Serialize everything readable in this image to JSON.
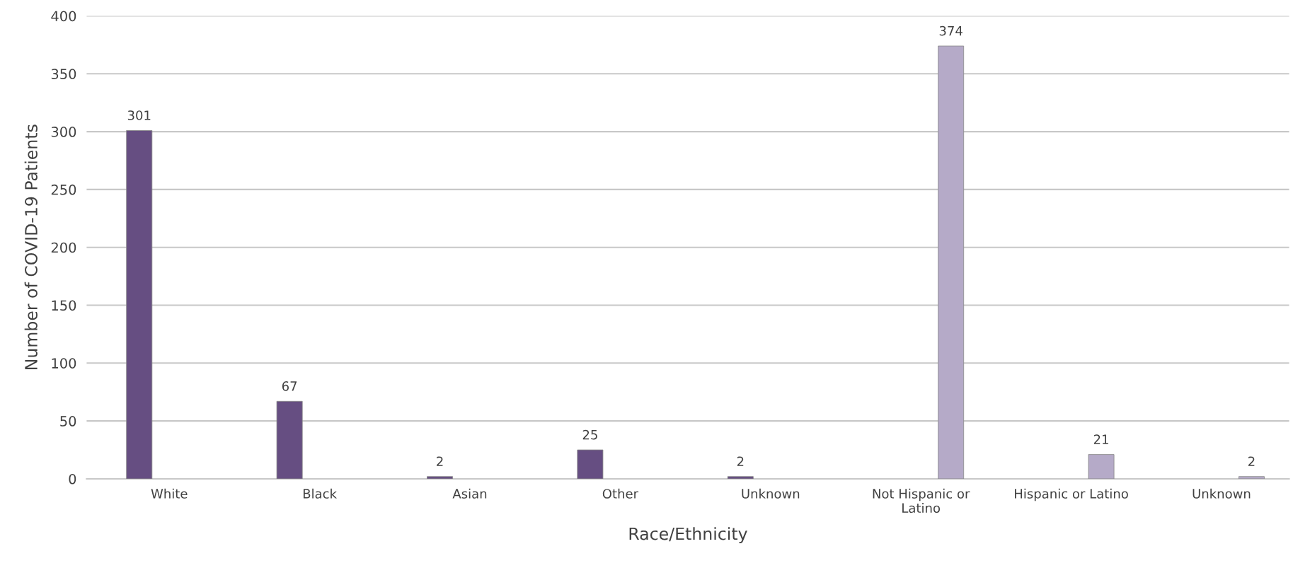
{
  "chart_data": {
    "type": "bar",
    "xlabel": "Race/Ethnicity",
    "ylabel": "Number of COVID-19 Patients",
    "categories": [
      "White",
      "Black",
      "Asian",
      "Other",
      "Unknown",
      "Not Hispanic or\nLatino",
      "Hispanic or Latino",
      "Unknown"
    ],
    "series": [
      {
        "color": "#664e82",
        "values": [
          301,
          67,
          2,
          25,
          2,
          null,
          null,
          null
        ]
      },
      {
        "color": "#b5aac8",
        "values": [
          null,
          null,
          null,
          null,
          null,
          374,
          21,
          2
        ]
      }
    ],
    "ylim": [
      0,
      400
    ],
    "yticks": [
      0,
      50,
      100,
      150,
      200,
      250,
      300,
      350,
      400
    ],
    "grid": "y",
    "data_labels": true
  }
}
